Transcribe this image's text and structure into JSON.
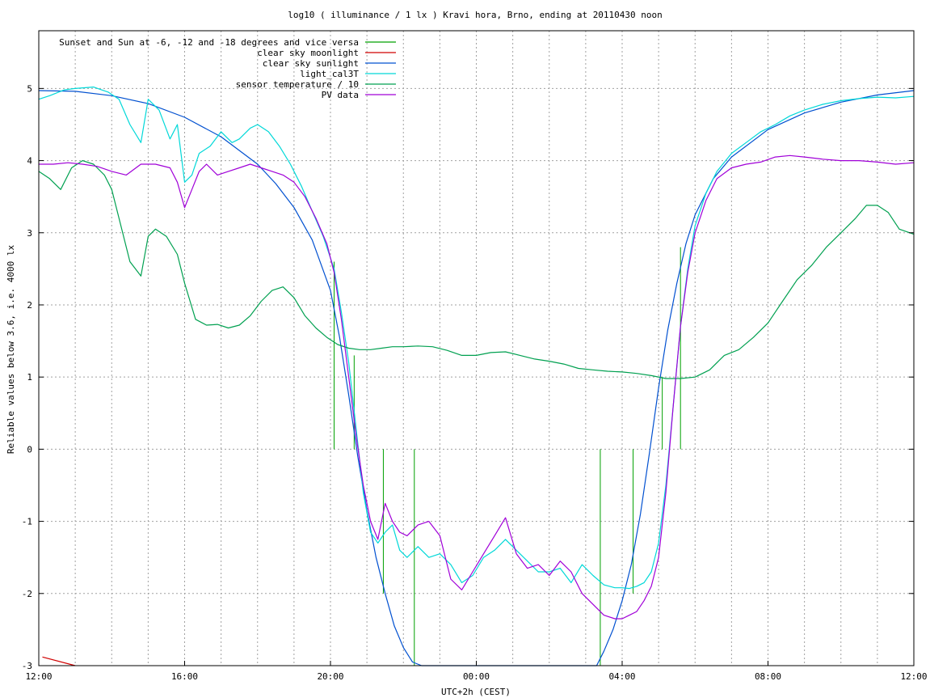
{
  "chart_data": {
    "type": "line",
    "title": "log10 ( illuminance / 1 lx ) Kravi hora, Brno, ending at 20110430 noon",
    "xlabel": "UTC+2h (CEST)",
    "ylabel": "Reliable values below 3.6, i.e. 4000 lx",
    "xlim": [
      12,
      36
    ],
    "ylim": [
      -3,
      5.8
    ],
    "grid": true,
    "legend_position": "top-left",
    "x_ticks": [
      {
        "value": 12,
        "label": "12:00"
      },
      {
        "value": 16,
        "label": "16:00"
      },
      {
        "value": 20,
        "label": "20:00"
      },
      {
        "value": 24,
        "label": "00:00"
      },
      {
        "value": 28,
        "label": "04:00"
      },
      {
        "value": 32,
        "label": "08:00"
      },
      {
        "value": 36,
        "label": "12:00"
      }
    ],
    "x_grid_step": 1,
    "y_ticks": [
      {
        "value": -3,
        "label": "-3"
      },
      {
        "value": -2,
        "label": "-2"
      },
      {
        "value": -1,
        "label": "-1"
      },
      {
        "value": 0,
        "label": "0"
      },
      {
        "value": 1,
        "label": "1"
      },
      {
        "value": 2,
        "label": "2"
      },
      {
        "value": 3,
        "label": "3"
      },
      {
        "value": 4,
        "label": "4"
      },
      {
        "value": 5,
        "label": "5"
      }
    ],
    "series": [
      {
        "name": "Sunset and Sun at -6, -12 and -18 degrees and vice versa",
        "color": "#00a000",
        "kind": "impulses",
        "x": [
          20.1,
          20.65,
          21.45,
          22.3,
          27.4,
          28.3,
          29.1,
          29.6
        ],
        "values": [
          2.6,
          1.3,
          -2.0,
          -3.0,
          -3.0,
          -2.0,
          1.0,
          2.8
        ]
      },
      {
        "name": "clear sky moonlight",
        "color": "#d00000",
        "x": [
          12.1,
          13.0
        ],
        "values": [
          -2.88,
          -3.0
        ]
      },
      {
        "name": "clear sky sunlight",
        "color": "#0050d0",
        "x": [
          12,
          13,
          14,
          15,
          16,
          17,
          18,
          18.5,
          19,
          19.5,
          20,
          20.25,
          20.5,
          20.75,
          21,
          21.25,
          21.5,
          21.75,
          22,
          22.25,
          22.5,
          27.3,
          27.5,
          27.75,
          28,
          28.25,
          28.5,
          28.75,
          29,
          29.25,
          29.5,
          29.75,
          30,
          30.5,
          31,
          32,
          33,
          34,
          35,
          36
        ],
        "values": [
          4.97,
          4.96,
          4.9,
          4.79,
          4.6,
          4.33,
          3.95,
          3.68,
          3.35,
          2.9,
          2.2,
          1.55,
          0.75,
          -0.1,
          -0.85,
          -1.5,
          -2.0,
          -2.45,
          -2.75,
          -2.95,
          -3.0,
          -3.0,
          -2.8,
          -2.5,
          -2.1,
          -1.6,
          -0.9,
          -0.05,
          0.85,
          1.65,
          2.3,
          2.85,
          3.25,
          3.75,
          4.05,
          4.43,
          4.66,
          4.81,
          4.91,
          4.97
        ]
      },
      {
        "name": "light_cal3T",
        "color": "#00d8d8",
        "x": [
          12,
          12.3,
          12.7,
          13,
          13.5,
          13.9,
          14.2,
          14.5,
          14.8,
          15,
          15.3,
          15.6,
          15.8,
          16,
          16.2,
          16.4,
          16.7,
          17,
          17.3,
          17.5,
          17.8,
          18,
          18.3,
          18.6,
          18.9,
          19.2,
          19.5,
          19.8,
          20.1,
          20.3,
          20.5,
          20.7,
          20.9,
          21.1,
          21.3,
          21.5,
          21.7,
          21.9,
          22.1,
          22.4,
          22.7,
          23,
          23.3,
          23.6,
          23.9,
          24.2,
          24.5,
          24.8,
          25.1,
          25.4,
          25.7,
          26,
          26.3,
          26.6,
          26.9,
          27.2,
          27.5,
          27.8,
          28,
          28.2,
          28.4,
          28.6,
          28.8,
          29,
          29.2,
          29.4,
          29.6,
          29.8,
          30,
          30.3,
          30.6,
          31,
          31.4,
          31.8,
          32.2,
          32.6,
          33,
          33.5,
          34,
          34.5,
          35,
          35.5,
          36
        ],
        "values": [
          4.85,
          4.9,
          4.98,
          5.0,
          5.02,
          4.95,
          4.85,
          4.5,
          4.25,
          4.85,
          4.7,
          4.3,
          4.5,
          3.7,
          3.8,
          4.1,
          4.2,
          4.4,
          4.25,
          4.3,
          4.45,
          4.5,
          4.4,
          4.2,
          3.95,
          3.65,
          3.3,
          2.95,
          2.5,
          1.9,
          1.2,
          0.3,
          -0.6,
          -1.15,
          -1.3,
          -1.15,
          -1.05,
          -1.4,
          -1.5,
          -1.35,
          -1.5,
          -1.45,
          -1.6,
          -1.85,
          -1.75,
          -1.5,
          -1.4,
          -1.25,
          -1.4,
          -1.55,
          -1.7,
          -1.7,
          -1.65,
          -1.85,
          -1.6,
          -1.75,
          -1.88,
          -1.92,
          -1.92,
          -1.93,
          -1.9,
          -1.85,
          -1.7,
          -1.3,
          -0.5,
          0.6,
          1.7,
          2.5,
          3.1,
          3.55,
          3.85,
          4.1,
          4.25,
          4.4,
          4.5,
          4.62,
          4.7,
          4.78,
          4.83,
          4.86,
          4.88,
          4.87,
          4.89
        ]
      },
      {
        "name": "sensor temperature / 10",
        "color": "#00a050",
        "x": [
          12,
          12.3,
          12.6,
          12.9,
          13.2,
          13.5,
          13.8,
          14.0,
          14.2,
          14.5,
          14.8,
          15.0,
          15.2,
          15.5,
          15.8,
          16.0,
          16.3,
          16.6,
          16.9,
          17.2,
          17.5,
          17.8,
          18.1,
          18.4,
          18.7,
          19.0,
          19.3,
          19.6,
          19.9,
          20.2,
          20.5,
          20.8,
          21.1,
          21.4,
          21.7,
          22.0,
          22.4,
          22.8,
          23.2,
          23.6,
          24.0,
          24.4,
          24.8,
          25.2,
          25.6,
          26.0,
          26.4,
          26.8,
          27.2,
          27.6,
          28.0,
          28.4,
          28.8,
          29.2,
          29.6,
          30.0,
          30.4,
          30.8,
          31.2,
          31.6,
          32.0,
          32.4,
          32.8,
          33.2,
          33.6,
          34.0,
          34.4,
          34.7,
          35.0,
          35.3,
          35.6,
          36.0
        ],
        "values": [
          3.85,
          3.75,
          3.6,
          3.9,
          4.0,
          3.95,
          3.8,
          3.6,
          3.2,
          2.6,
          2.4,
          2.95,
          3.05,
          2.95,
          2.7,
          2.3,
          1.8,
          1.72,
          1.73,
          1.68,
          1.72,
          1.85,
          2.05,
          2.2,
          2.25,
          2.1,
          1.85,
          1.68,
          1.55,
          1.45,
          1.4,
          1.38,
          1.38,
          1.4,
          1.42,
          1.42,
          1.43,
          1.42,
          1.37,
          1.3,
          1.3,
          1.34,
          1.35,
          1.3,
          1.25,
          1.22,
          1.18,
          1.12,
          1.1,
          1.08,
          1.07,
          1.05,
          1.02,
          0.98,
          0.98,
          1.0,
          1.1,
          1.3,
          1.38,
          1.55,
          1.75,
          2.05,
          2.35,
          2.55,
          2.8,
          3.0,
          3.2,
          3.38,
          3.38,
          3.28,
          3.05,
          2.98
        ]
      },
      {
        "name": "PV data",
        "color": "#a000d8",
        "x": [
          12,
          12.4,
          12.8,
          13.2,
          13.6,
          14.0,
          14.4,
          14.8,
          15.2,
          15.6,
          15.8,
          16.0,
          16.2,
          16.4,
          16.6,
          16.9,
          17.2,
          17.5,
          17.8,
          18.1,
          18.4,
          18.7,
          19.0,
          19.3,
          19.6,
          19.9,
          20.1,
          20.3,
          20.5,
          20.7,
          20.9,
          21.1,
          21.3,
          21.5,
          21.7,
          21.9,
          22.1,
          22.4,
          22.7,
          23.0,
          23.3,
          23.6,
          23.9,
          24.2,
          24.5,
          24.8,
          25.1,
          25.4,
          25.7,
          26.0,
          26.3,
          26.6,
          26.9,
          27.2,
          27.5,
          27.8,
          28.0,
          28.2,
          28.4,
          28.6,
          28.8,
          29.0,
          29.2,
          29.4,
          29.6,
          29.8,
          30.0,
          30.3,
          30.6,
          31.0,
          31.4,
          31.8,
          32.2,
          32.6,
          33.0,
          33.5,
          34.0,
          34.5,
          35.0,
          35.5,
          36.0
        ],
        "values": [
          3.95,
          3.95,
          3.97,
          3.95,
          3.92,
          3.85,
          3.8,
          3.95,
          3.95,
          3.9,
          3.7,
          3.35,
          3.6,
          3.85,
          3.95,
          3.8,
          3.85,
          3.9,
          3.95,
          3.9,
          3.85,
          3.8,
          3.7,
          3.5,
          3.2,
          2.85,
          2.45,
          1.8,
          1.0,
          0.2,
          -0.5,
          -1.0,
          -1.25,
          -0.75,
          -1.0,
          -1.15,
          -1.2,
          -1.05,
          -1.0,
          -1.2,
          -1.8,
          -1.95,
          -1.7,
          -1.45,
          -1.2,
          -0.95,
          -1.45,
          -1.65,
          -1.6,
          -1.75,
          -1.55,
          -1.7,
          -2.0,
          -2.15,
          -2.3,
          -2.35,
          -2.35,
          -2.3,
          -2.25,
          -2.1,
          -1.9,
          -1.5,
          -0.6,
          0.6,
          1.7,
          2.45,
          3.0,
          3.45,
          3.75,
          3.9,
          3.95,
          3.98,
          4.05,
          4.07,
          4.05,
          4.02,
          4.0,
          4.0,
          3.98,
          3.95,
          3.97
        ]
      }
    ]
  }
}
